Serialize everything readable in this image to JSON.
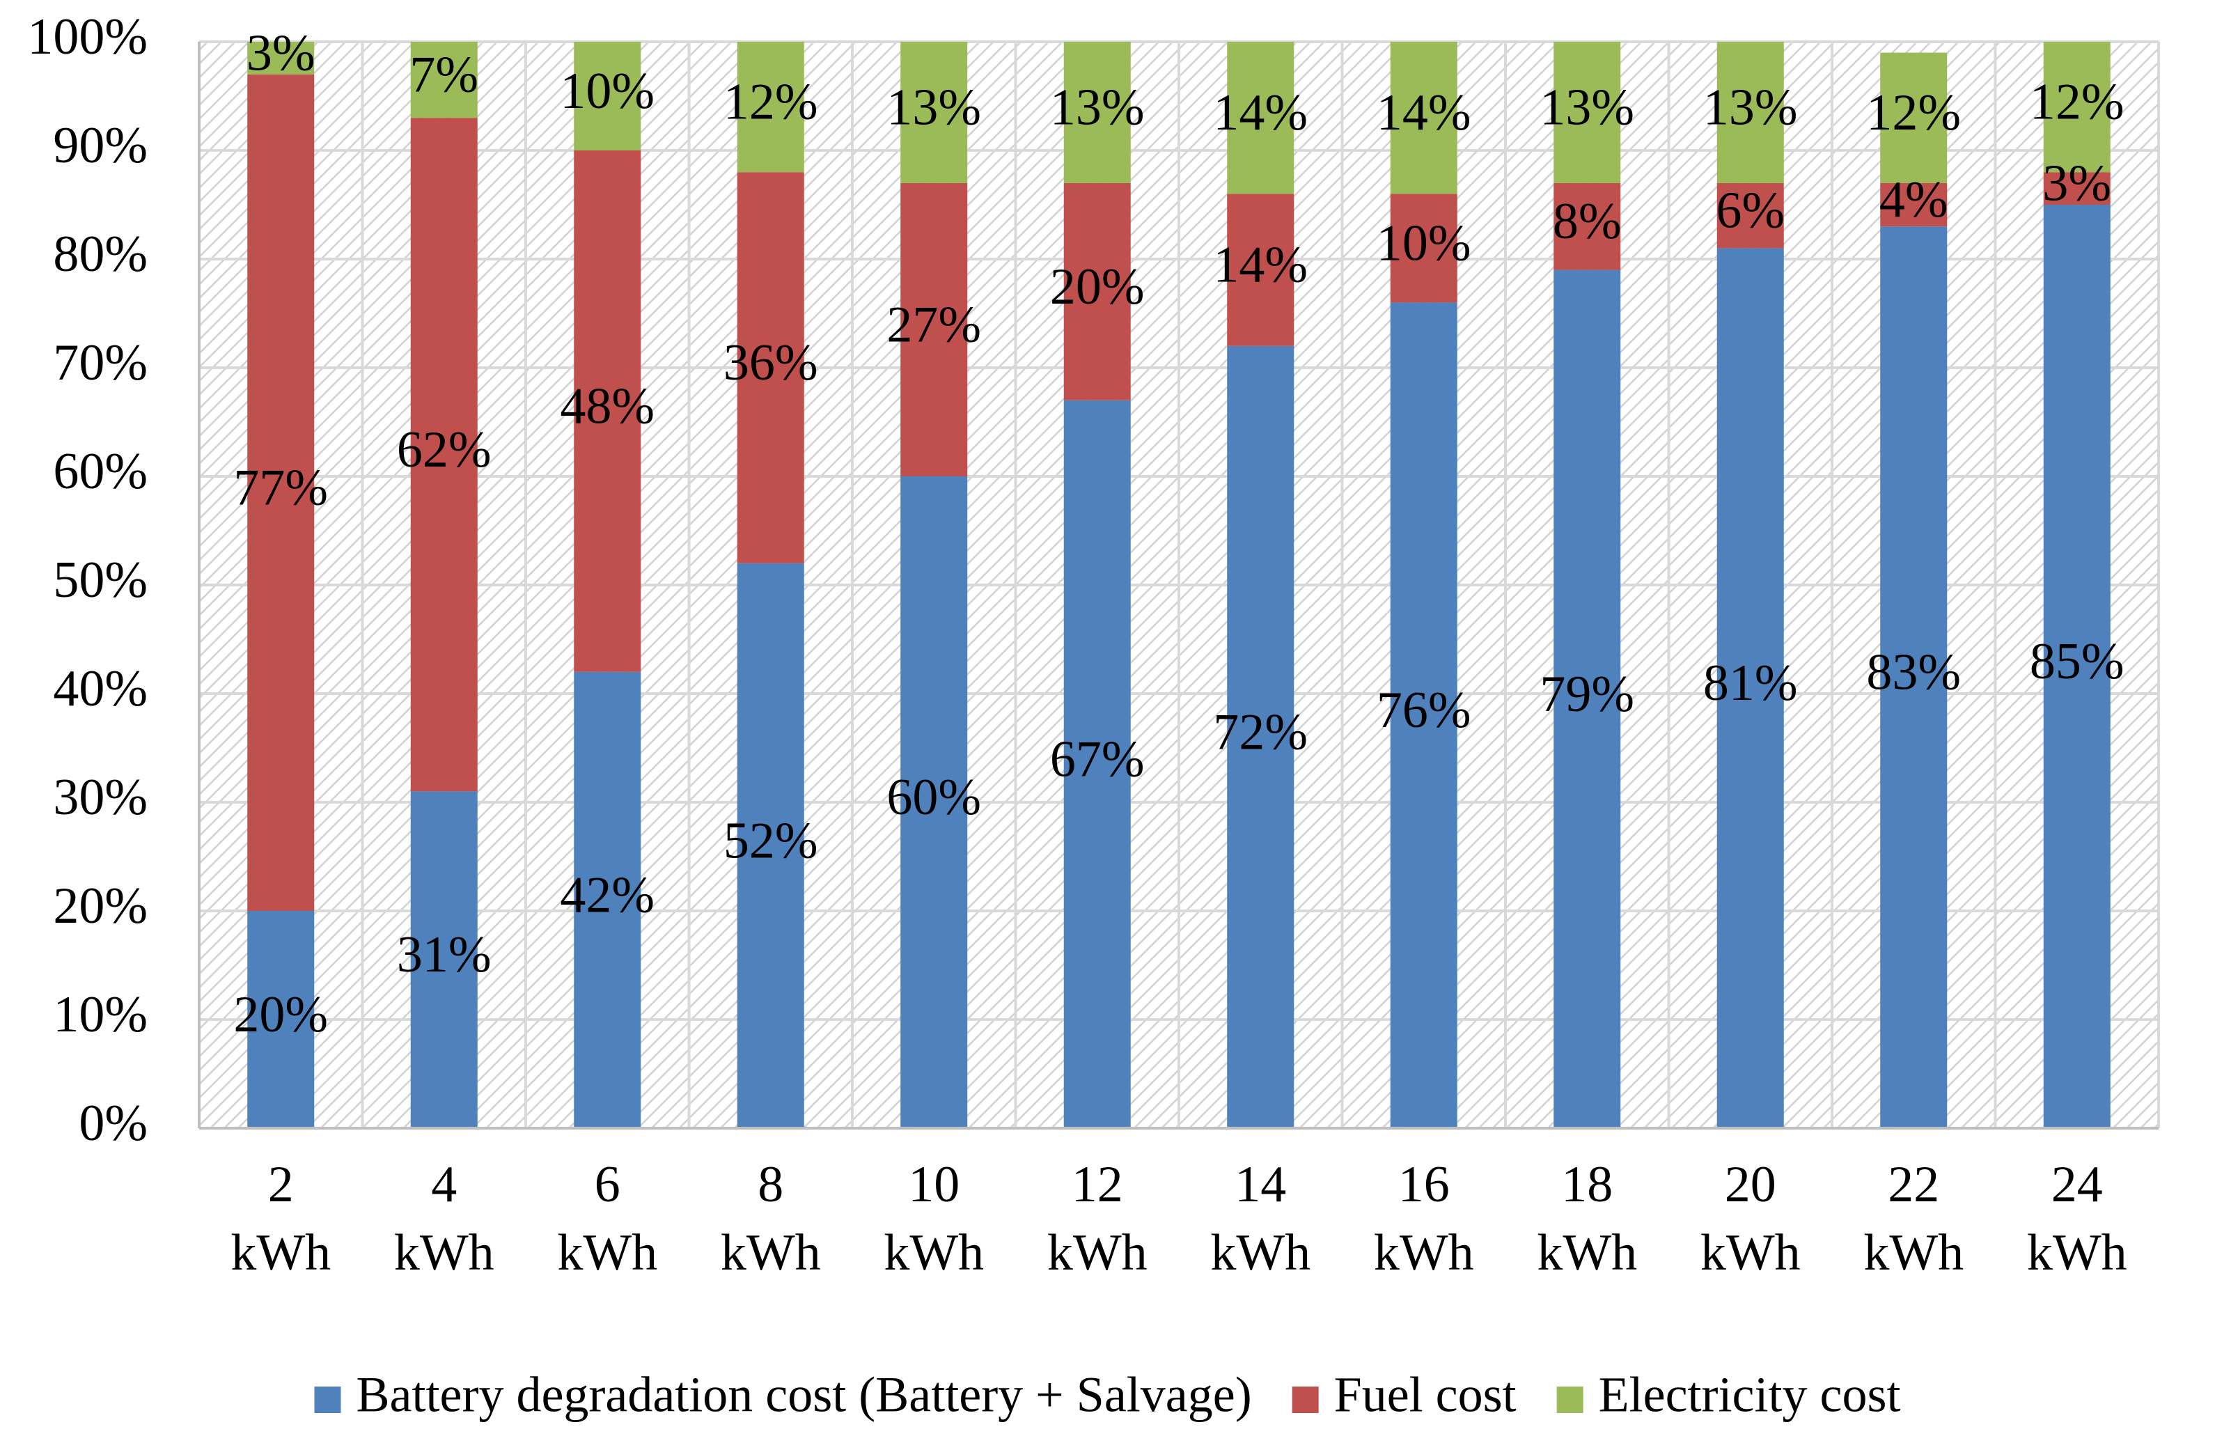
{
  "chart_data": {
    "type": "bar",
    "stacked": true,
    "categories": [
      "2 kWh",
      "4 kWh",
      "6 kWh",
      "8 kWh",
      "10 kWh",
      "12 kWh",
      "14 kWh",
      "16 kWh",
      "18 kWh",
      "20 kWh",
      "22 kWh",
      "24 kWh"
    ],
    "categories_display": [
      [
        "2",
        "kWh"
      ],
      [
        "4",
        "kWh"
      ],
      [
        "6",
        "kWh"
      ],
      [
        "8",
        "kWh"
      ],
      [
        "10",
        "kWh"
      ],
      [
        "12",
        "kWh"
      ],
      [
        "14",
        "kWh"
      ],
      [
        "16",
        "kWh"
      ],
      [
        "18",
        "kWh"
      ],
      [
        "20",
        "kWh"
      ],
      [
        "22",
        "kWh"
      ],
      [
        "24",
        "kWh"
      ]
    ],
    "series": [
      {
        "name": "Battery degradation cost (Battery + Salvage)",
        "color": "#4f81bd",
        "values": [
          20,
          31,
          42,
          52,
          60,
          67,
          72,
          76,
          79,
          81,
          83,
          85
        ],
        "labels": [
          "20%",
          "31%",
          "42%",
          "52%",
          "60%",
          "67%",
          "72%",
          "76%",
          "79%",
          "81%",
          "83%",
          "85%"
        ]
      },
      {
        "name": "Fuel cost",
        "color": "#c0504d",
        "values": [
          77,
          62,
          48,
          36,
          27,
          20,
          14,
          10,
          8,
          6,
          4,
          3
        ],
        "labels": [
          "77%",
          "62%",
          "48%",
          "36%",
          "27%",
          "20%",
          "14%",
          "10%",
          "8%",
          "6%",
          "4%",
          "3%"
        ]
      },
      {
        "name": "Electricity cost",
        "color": "#9bbb59",
        "values": [
          3,
          7,
          10,
          12,
          13,
          13,
          14,
          14,
          13,
          13,
          12,
          12
        ],
        "labels": [
          "3%",
          "7%",
          "10%",
          "12%",
          "13%",
          "13%",
          "14%",
          "14%",
          "13%",
          "13%",
          "12%",
          "12%"
        ]
      }
    ],
    "y_ticks": [
      "0%",
      "10%",
      "20%",
      "30%",
      "40%",
      "50%",
      "60%",
      "70%",
      "80%",
      "90%",
      "100%"
    ],
    "ylim": [
      0,
      100
    ],
    "xlabel": "",
    "ylabel": "",
    "title": "",
    "grid": true,
    "legend_position": "bottom"
  }
}
